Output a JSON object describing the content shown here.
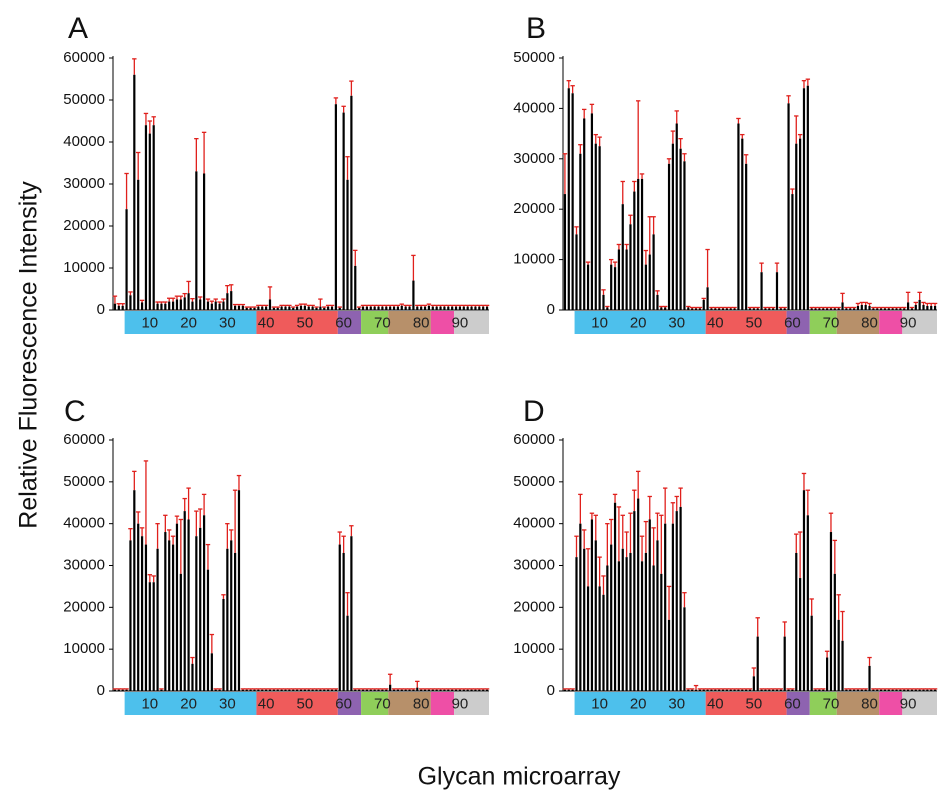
{
  "figure": {
    "ylabel": "Relative Fluorescence Intensity",
    "xlabel": "Glycan microarray"
  },
  "colors": {
    "bar": "#000000",
    "error": "#e0201c",
    "segments": [
      "#4dc0ec",
      "#ef5b5b",
      "#8e63b0",
      "#8fce5a",
      "#b7906a",
      "#ee4fa6",
      "#cccccc"
    ]
  },
  "chart_data": [
    {
      "type": "bar",
      "panel_label": "A",
      "ylim": [
        0,
        60000
      ],
      "yticks": [
        "0",
        "10000",
        "20000",
        "30000",
        "40000",
        "50000",
        "60000"
      ],
      "xtick_labels": [
        "10",
        "20",
        "30",
        "40",
        "50",
        "60",
        "70",
        "80",
        "90"
      ],
      "x": [
        1,
        2,
        3,
        4,
        5,
        6,
        7,
        8,
        9,
        10,
        11,
        12,
        13,
        14,
        15,
        16,
        17,
        18,
        19,
        20,
        21,
        22,
        23,
        24,
        25,
        26,
        27,
        28,
        29,
        30,
        31,
        32,
        33,
        34,
        35,
        36,
        37,
        38,
        39,
        40,
        41,
        42,
        43,
        44,
        45,
        46,
        47,
        48,
        49,
        50,
        51,
        52,
        53,
        54,
        55,
        56,
        57,
        58,
        59,
        60,
        61,
        62,
        63,
        64,
        65,
        66,
        67,
        68,
        69,
        70,
        71,
        72,
        73,
        74,
        75,
        76,
        77,
        78,
        79,
        80,
        81,
        82,
        83,
        84,
        85,
        86,
        87,
        88,
        89,
        90,
        91,
        92,
        93,
        94,
        95,
        96,
        97
      ],
      "values": [
        1500,
        1000,
        1000,
        24000,
        3500,
        56000,
        31000,
        1800,
        44000,
        42000,
        44000,
        1500,
        1500,
        1500,
        2000,
        2000,
        2500,
        2500,
        3000,
        4000,
        2000,
        33000,
        2500,
        32500,
        2000,
        1500,
        2000,
        1500,
        2000,
        4000,
        4500,
        1000,
        1000,
        1000,
        500,
        500,
        500,
        800,
        800,
        800,
        2500,
        500,
        500,
        800,
        800,
        800,
        500,
        800,
        1000,
        1000,
        800,
        800,
        500,
        800,
        500,
        800,
        800,
        49000,
        500,
        47000,
        31000,
        51000,
        10500,
        500,
        800,
        800,
        800,
        800,
        800,
        800,
        800,
        800,
        800,
        800,
        1000,
        800,
        800,
        7000,
        800,
        800,
        800,
        1000,
        800,
        800,
        800,
        800,
        800,
        800,
        800,
        800,
        800,
        800,
        800,
        800,
        800,
        800,
        800
      ],
      "errors": [
        1800,
        500,
        500,
        8500,
        800,
        3800,
        6500,
        500,
        2800,
        3000,
        2000,
        400,
        400,
        400,
        800,
        800,
        800,
        800,
        900,
        2800,
        700,
        7800,
        600,
        9800,
        600,
        600,
        600,
        400,
        600,
        1800,
        1500,
        300,
        300,
        300,
        200,
        200,
        200,
        300,
        300,
        300,
        3000,
        200,
        200,
        300,
        300,
        300,
        200,
        300,
        400,
        400,
        300,
        300,
        200,
        1800,
        200,
        300,
        300,
        1500,
        200,
        1500,
        5500,
        3500,
        3700,
        200,
        300,
        300,
        300,
        300,
        300,
        300,
        300,
        300,
        300,
        300,
        400,
        300,
        300,
        6000,
        300,
        300,
        300,
        400,
        300,
        300,
        300,
        300,
        300,
        300,
        300,
        300,
        300,
        300,
        300,
        300,
        300,
        300,
        300
      ]
    },
    {
      "type": "bar",
      "panel_label": "B",
      "ylim": [
        0,
        50000
      ],
      "yticks": [
        "0",
        "10000",
        "20000",
        "30000",
        "40000",
        "50000"
      ],
      "xtick_labels": [
        "10",
        "20",
        "30",
        "40",
        "50",
        "60",
        "70",
        "80",
        "90"
      ],
      "x": [
        1,
        2,
        3,
        4,
        5,
        6,
        7,
        8,
        9,
        10,
        11,
        12,
        13,
        14,
        15,
        16,
        17,
        18,
        19,
        20,
        21,
        22,
        23,
        24,
        25,
        26,
        27,
        28,
        29,
        30,
        31,
        32,
        33,
        34,
        35,
        36,
        37,
        38,
        39,
        40,
        41,
        42,
        43,
        44,
        45,
        46,
        47,
        48,
        49,
        50,
        51,
        52,
        53,
        54,
        55,
        56,
        57,
        58,
        59,
        60,
        61,
        62,
        63,
        64,
        65,
        66,
        67,
        68,
        69,
        70,
        71,
        72,
        73,
        74,
        75,
        76,
        77,
        78,
        79,
        80,
        81,
        82,
        83,
        84,
        85,
        86,
        87,
        88,
        89,
        90,
        91,
        92,
        93,
        94,
        95,
        96,
        97
      ],
      "values": [
        23000,
        44000,
        43000,
        15000,
        31000,
        38000,
        9000,
        39000,
        33000,
        32500,
        3000,
        500,
        9000,
        8500,
        12000,
        21000,
        12000,
        17000,
        23500,
        26000,
        26000,
        9000,
        11000,
        15000,
        3000,
        500,
        500,
        29000,
        33000,
        37000,
        32000,
        29500,
        500,
        300,
        300,
        300,
        2000,
        4500,
        300,
        300,
        300,
        300,
        300,
        300,
        300,
        37000,
        34000,
        29000,
        300,
        300,
        300,
        7500,
        300,
        300,
        300,
        7500,
        300,
        300,
        41000,
        23000,
        33000,
        34000,
        44000,
        44500,
        300,
        300,
        300,
        300,
        300,
        300,
        300,
        300,
        1500,
        300,
        300,
        300,
        800,
        1000,
        1000,
        800,
        300,
        300,
        300,
        300,
        300,
        300,
        300,
        300,
        300,
        1500,
        300,
        1000,
        2000,
        1000,
        800,
        800,
        800
      ],
      "errors": [
        8000,
        1500,
        1500,
        1500,
        1800,
        1800,
        500,
        1800,
        1800,
        1800,
        1000,
        200,
        1000,
        1000,
        1000,
        4500,
        1000,
        1800,
        2000,
        15500,
        1000,
        2800,
        7500,
        3500,
        800,
        200,
        200,
        1000,
        2500,
        2500,
        2000,
        1500,
        200,
        200,
        200,
        200,
        300,
        7500,
        200,
        200,
        200,
        200,
        200,
        200,
        200,
        1000,
        800,
        1800,
        200,
        200,
        200,
        1800,
        200,
        200,
        200,
        1800,
        200,
        200,
        1500,
        1000,
        5500,
        800,
        1500,
        1300,
        200,
        200,
        200,
        200,
        200,
        200,
        200,
        200,
        1800,
        200,
        200,
        200,
        500,
        500,
        500,
        500,
        200,
        200,
        200,
        200,
        200,
        200,
        200,
        200,
        200,
        2000,
        200,
        500,
        1500,
        500,
        500,
        500,
        500
      ]
    },
    {
      "type": "bar",
      "panel_label": "C",
      "ylim": [
        0,
        60000
      ],
      "yticks": [
        "0",
        "10000",
        "20000",
        "30000",
        "40000",
        "50000",
        "60000"
      ],
      "xtick_labels": [
        "10",
        "20",
        "30",
        "40",
        "50",
        "60",
        "70",
        "80",
        "90"
      ],
      "x": [
        1,
        2,
        3,
        4,
        5,
        6,
        7,
        8,
        9,
        10,
        11,
        12,
        13,
        14,
        15,
        16,
        17,
        18,
        19,
        20,
        21,
        22,
        23,
        24,
        25,
        26,
        27,
        28,
        29,
        30,
        31,
        32,
        33,
        34,
        35,
        36,
        37,
        38,
        39,
        40,
        41,
        42,
        43,
        44,
        45,
        46,
        47,
        48,
        49,
        50,
        51,
        52,
        53,
        54,
        55,
        56,
        57,
        58,
        59,
        60,
        61,
        62,
        63,
        64,
        65,
        66,
        67,
        68,
        69,
        70,
        71,
        72,
        73,
        74,
        75,
        76,
        77,
        78,
        79,
        80,
        81,
        82,
        83,
        84,
        85,
        86,
        87,
        88,
        89,
        90,
        91,
        92,
        93,
        94,
        95,
        96,
        97
      ],
      "values": [
        300,
        300,
        300,
        300,
        36000,
        48000,
        40000,
        37000,
        35000,
        26000,
        26000,
        34000,
        300,
        38000,
        36000,
        35000,
        40000,
        28000,
        43000,
        41000,
        6500,
        37000,
        39000,
        42000,
        29000,
        9000,
        300,
        300,
        22000,
        34000,
        36000,
        33000,
        48000,
        300,
        300,
        300,
        300,
        300,
        300,
        300,
        300,
        300,
        300,
        300,
        300,
        300,
        300,
        300,
        300,
        300,
        300,
        300,
        300,
        300,
        300,
        300,
        300,
        300,
        35000,
        33000,
        18000,
        37000,
        300,
        300,
        300,
        300,
        300,
        300,
        300,
        300,
        300,
        1500,
        300,
        300,
        300,
        300,
        300,
        300,
        800,
        300,
        300,
        300,
        300,
        300,
        300,
        300,
        300,
        300,
        300,
        300,
        300,
        300,
        300,
        300,
        300,
        300,
        300
      ],
      "errors": [
        200,
        200,
        200,
        200,
        2800,
        4500,
        2800,
        2000,
        20000,
        1800,
        1500,
        6000,
        200,
        4000,
        2500,
        2000,
        1800,
        13000,
        3000,
        7500,
        1500,
        6000,
        4500,
        5000,
        6000,
        4500,
        200,
        200,
        1000,
        6000,
        2500,
        15000,
        3500,
        200,
        200,
        200,
        200,
        200,
        200,
        200,
        200,
        200,
        200,
        200,
        200,
        200,
        200,
        200,
        200,
        200,
        200,
        200,
        200,
        200,
        200,
        200,
        200,
        200,
        3000,
        4000,
        5500,
        2500,
        200,
        200,
        200,
        200,
        200,
        200,
        200,
        200,
        200,
        2500,
        200,
        200,
        200,
        200,
        200,
        200,
        1500,
        200,
        200,
        200,
        200,
        200,
        200,
        200,
        200,
        200,
        200,
        200,
        200,
        200,
        200,
        200,
        200,
        200,
        200
      ]
    },
    {
      "type": "bar",
      "panel_label": "D",
      "ylim": [
        0,
        60000
      ],
      "yticks": [
        "0",
        "10000",
        "20000",
        "30000",
        "40000",
        "50000",
        "60000"
      ],
      "xtick_labels": [
        "10",
        "20",
        "30",
        "40",
        "50",
        "60",
        "70",
        "80",
        "90"
      ],
      "x": [
        1,
        2,
        3,
        4,
        5,
        6,
        7,
        8,
        9,
        10,
        11,
        12,
        13,
        14,
        15,
        16,
        17,
        18,
        19,
        20,
        21,
        22,
        23,
        24,
        25,
        26,
        27,
        28,
        29,
        30,
        31,
        32,
        33,
        34,
        35,
        36,
        37,
        38,
        39,
        40,
        41,
        42,
        43,
        44,
        45,
        46,
        47,
        48,
        49,
        50,
        51,
        52,
        53,
        54,
        55,
        56,
        57,
        58,
        59,
        60,
        61,
        62,
        63,
        64,
        65,
        66,
        67,
        68,
        69,
        70,
        71,
        72,
        73,
        74,
        75,
        76,
        77,
        78,
        79,
        80,
        81,
        82,
        83,
        84,
        85,
        86,
        87,
        88,
        89,
        90,
        91,
        92,
        93,
        94,
        95,
        96,
        97
      ],
      "values": [
        300,
        300,
        300,
        32000,
        40000,
        34000,
        25000,
        41000,
        36000,
        25000,
        23000,
        30000,
        35000,
        45000,
        31000,
        34000,
        32000,
        33000,
        43000,
        46000,
        31000,
        33000,
        41000,
        30000,
        36000,
        28000,
        40000,
        17000,
        40000,
        43000,
        44000,
        20000,
        300,
        300,
        300,
        300,
        300,
        300,
        300,
        300,
        300,
        300,
        300,
        300,
        300,
        300,
        300,
        300,
        300,
        3500,
        13000,
        300,
        300,
        300,
        300,
        300,
        300,
        13000,
        300,
        300,
        33000,
        27000,
        48000,
        42000,
        18000,
        300,
        300,
        300,
        8000,
        38000,
        28000,
        17000,
        12000,
        300,
        300,
        300,
        300,
        300,
        300,
        6000,
        300,
        300,
        300,
        300,
        300,
        300,
        300,
        300,
        300,
        300,
        300,
        300,
        300,
        300,
        300,
        300,
        300
      ],
      "errors": [
        200,
        200,
        200,
        5000,
        7000,
        4500,
        9000,
        1500,
        6000,
        7000,
        4500,
        10000,
        6000,
        2000,
        13000,
        8000,
        6000,
        9500,
        5000,
        6500,
        6000,
        7500,
        5500,
        9000,
        6500,
        14000,
        8500,
        8000,
        5000,
        3500,
        4500,
        3500,
        200,
        200,
        1000,
        200,
        200,
        200,
        200,
        200,
        200,
        200,
        200,
        200,
        200,
        200,
        200,
        200,
        200,
        2000,
        4500,
        200,
        200,
        200,
        200,
        200,
        200,
        3500,
        200,
        200,
        4500,
        11000,
        4000,
        6000,
        4000,
        200,
        200,
        200,
        1500,
        4500,
        8000,
        6000,
        7000,
        200,
        200,
        200,
        200,
        200,
        200,
        2000,
        200,
        200,
        200,
        200,
        200,
        200,
        200,
        200,
        200,
        200,
        200,
        200,
        200,
        200,
        200,
        200,
        200
      ]
    }
  ]
}
